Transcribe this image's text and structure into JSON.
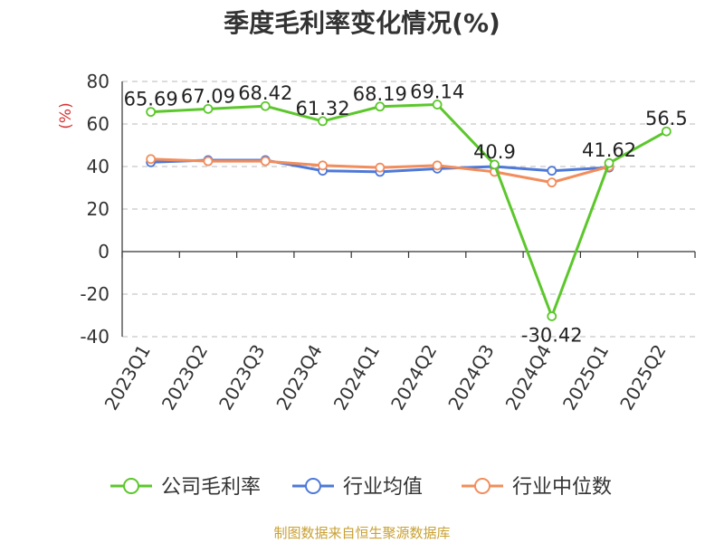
{
  "chart_data": {
    "type": "line",
    "title": "季度毛利率变化情况(%)",
    "ylabel": "(%)",
    "xlabel": "",
    "categories": [
      "2023Q1",
      "2023Q2",
      "2023Q3",
      "2023Q4",
      "2024Q1",
      "2024Q2",
      "2024Q3",
      "2024Q4",
      "2025Q1",
      "2025Q2"
    ],
    "ylim": [
      -40,
      80
    ],
    "yticks": [
      -40,
      -20,
      0,
      20,
      40,
      60,
      80
    ],
    "grid": true,
    "legend": "bottom",
    "series": [
      {
        "name": "公司毛利率",
        "color": "#5cc72c",
        "values": [
          65.69,
          67.09,
          68.42,
          61.32,
          68.19,
          69.14,
          40.9,
          -30.42,
          41.62,
          56.5
        ],
        "labels": [
          "65.69",
          "67.09",
          "68.42",
          "61.32",
          "68.19",
          "69.14",
          "40.9",
          "-30.42",
          "41.62",
          "56.5"
        ]
      },
      {
        "name": "行业均值",
        "color": "#4e79d8",
        "values": [
          42,
          43,
          43,
          38,
          37.5,
          39,
          40,
          38,
          39.5,
          null
        ]
      },
      {
        "name": "行业中位数",
        "color": "#f28d5c",
        "values": [
          43.5,
          42.5,
          42.5,
          40.5,
          39.5,
          40.5,
          37.5,
          32.5,
          40,
          null
        ]
      }
    ]
  },
  "source_note": "制图数据来自恒生聚源数据库"
}
